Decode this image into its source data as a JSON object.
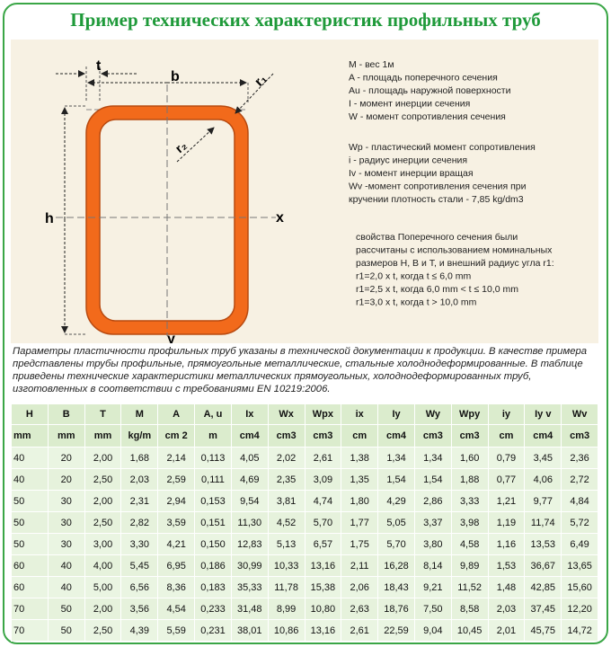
{
  "title": "Пример технических характеристик профильных труб",
  "diagram": {
    "t": "t",
    "b": "b",
    "r1": "r₁",
    "r2": "r₂",
    "h": "h",
    "x": "x",
    "y": "y"
  },
  "notes": [
    [
      "M - вес 1м",
      "A - площадь поперечного сечения",
      "Au - площадь наружной поверхности",
      "I - момент инерции сечения",
      "W - момент сопротивления сечения"
    ],
    [
      "Wp - пластический момент сопротивления",
      "i - радиус инерции сечения",
      "Iv - момент инерции вращая",
      "Wv -момент сопротивления сечения при",
      "кручении плотность стали - 7,85 kg/dm3"
    ],
    [
      "свойства Поперечного сечения были",
      "рассчитаны с использованием номинальных",
      "размеров H, B и T, и внешний радиус угла r1:",
      "r1=2,0 x t, когда t ≤ 6,0 mm",
      "r1=2,5 x t, когда 6,0 mm < t ≤ 10,0 mm",
      "r1=3,0 x t, когда t > 10,0 mm"
    ]
  ],
  "paragraph": "Параметры пластичности профильных труб указаны в технической документации к продукции. В качестве примера представлены трубы профильные, прямоугольные металлические, стальные холоднодеформированные. В таблице приведены технические характеристики металлических прямоугольных, холоднодеформированных труб, изготовленных в соответствии с требованиями EN 10219:2006.",
  "table": {
    "headers": [
      "H",
      "B",
      "T",
      "M",
      "A",
      "A, u",
      "Ix",
      "Wx",
      "Wpx",
      "ix",
      "Iy",
      "Wy",
      "Wpy",
      "iy",
      "Iy v",
      "Wv"
    ],
    "units": [
      "mm",
      "mm",
      "mm",
      "kg/m",
      "cm 2",
      "m",
      "cm4",
      "cm3",
      "cm3",
      "cm",
      "cm4",
      "cm3",
      "cm3",
      "cm",
      "cm4",
      "cm3"
    ],
    "rows": [
      [
        "40",
        "20",
        "2,00",
        "1,68",
        "2,14",
        "0,113",
        "4,05",
        "2,02",
        "2,61",
        "1,38",
        "1,34",
        "1,34",
        "1,60",
        "0,79",
        "3,45",
        "2,36"
      ],
      [
        "40",
        "20",
        "2,50",
        "2,03",
        "2,59",
        "0,111",
        "4,69",
        "2,35",
        "3,09",
        "1,35",
        "1,54",
        "1,54",
        "1,88",
        "0,77",
        "4,06",
        "2,72"
      ],
      [
        "50",
        "30",
        "2,00",
        "2,31",
        "2,94",
        "0,153",
        "9,54",
        "3,81",
        "4,74",
        "1,80",
        "4,29",
        "2,86",
        "3,33",
        "1,21",
        "9,77",
        "4,84"
      ],
      [
        "50",
        "30",
        "2,50",
        "2,82",
        "3,59",
        "0,151",
        "11,30",
        "4,52",
        "5,70",
        "1,77",
        "5,05",
        "3,37",
        "3,98",
        "1,19",
        "11,74",
        "5,72"
      ],
      [
        "50",
        "30",
        "3,00",
        "3,30",
        "4,21",
        "0,150",
        "12,83",
        "5,13",
        "6,57",
        "1,75",
        "5,70",
        "3,80",
        "4,58",
        "1,16",
        "13,53",
        "6,49"
      ],
      [
        "60",
        "40",
        "4,00",
        "5,45",
        "6,95",
        "0,186",
        "30,99",
        "10,33",
        "13,16",
        "2,11",
        "16,28",
        "8,14",
        "9,89",
        "1,53",
        "36,67",
        "13,65"
      ],
      [
        "60",
        "40",
        "5,00",
        "6,56",
        "8,36",
        "0,183",
        "35,33",
        "11,78",
        "15,38",
        "2,06",
        "18,43",
        "9,21",
        "11,52",
        "1,48",
        "42,85",
        "15,60"
      ],
      [
        "70",
        "50",
        "2,00",
        "3,56",
        "4,54",
        "0,233",
        "31,48",
        "8,99",
        "10,80",
        "2,63",
        "18,76",
        "7,50",
        "8,58",
        "2,03",
        "37,45",
        "12,20"
      ],
      [
        "70",
        "50",
        "2,50",
        "4,39",
        "5,59",
        "0,231",
        "38,01",
        "10,86",
        "13,16",
        "2,61",
        "22,59",
        "9,04",
        "10,45",
        "2,01",
        "45,75",
        "14,72"
      ]
    ]
  }
}
